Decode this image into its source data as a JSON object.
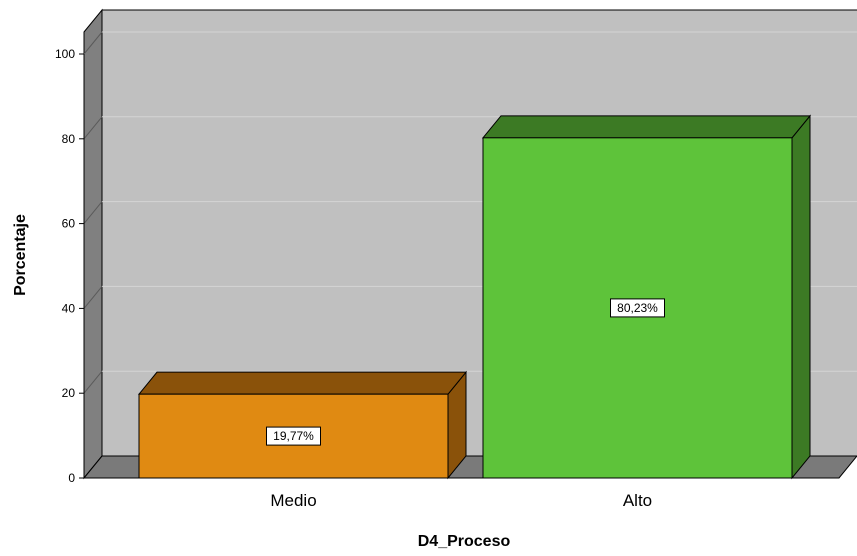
{
  "chart_data": {
    "type": "bar",
    "title": "",
    "categories": [
      "Medio",
      "Alto"
    ],
    "values": [
      19.77,
      80.23
    ],
    "data_labels": [
      "19,77%",
      "80,23%"
    ],
    "xlabel": "D4_Proceso",
    "ylabel": "Porcentaje",
    "ylim": [
      0,
      100
    ],
    "yticks": [
      0,
      20,
      40,
      60,
      80,
      100
    ],
    "ytick_labels": [
      "0",
      "20",
      "40",
      "60",
      "80",
      "100"
    ],
    "grid": true,
    "style": "3d",
    "colors": {
      "bars": [
        "#e08a12",
        "#5ec33a"
      ],
      "bar_tops": [
        "#8a520a",
        "#3c7a24"
      ],
      "bar_sides": [
        "#8a520a",
        "#3c7a24"
      ],
      "plot_background": "#c0c0c0",
      "wall": "#808080",
      "floor": "#7a7a7a",
      "gridline": "#d4d4d4"
    }
  }
}
